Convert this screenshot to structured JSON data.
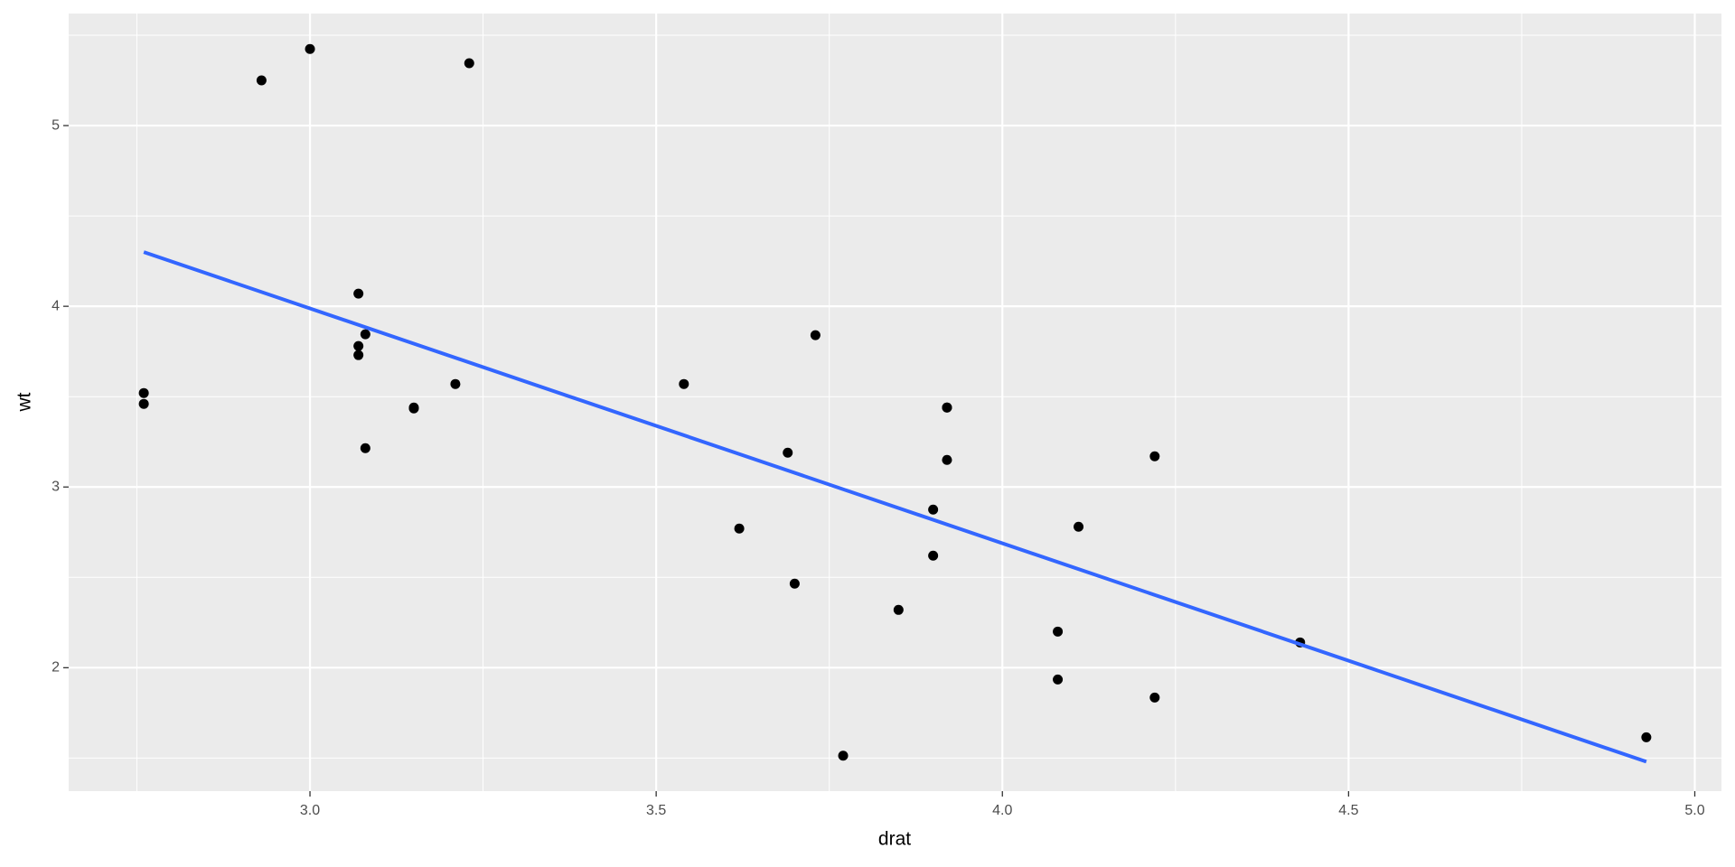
{
  "chart_data": {
    "type": "scatter",
    "x_label": "drat",
    "y_label": "wt",
    "series": [
      {
        "color": "#000000",
        "x": [
          3.9,
          3.9,
          3.85,
          3.08,
          3.15,
          2.76,
          3.21,
          3.69,
          3.92,
          3.92,
          3.92,
          3.07,
          3.07,
          3.07,
          2.93,
          3.0,
          3.23,
          4.08,
          4.93,
          4.22,
          3.7,
          2.76,
          3.15,
          3.73,
          3.08,
          4.08,
          4.43,
          3.77,
          4.22,
          3.62,
          3.54,
          4.11
        ],
        "values": [
          2.62,
          2.875,
          2.32,
          3.215,
          3.44,
          3.46,
          3.57,
          3.19,
          3.15,
          3.44,
          3.44,
          4.07,
          3.73,
          3.78,
          5.25,
          5.424,
          5.345,
          2.2,
          1.615,
          1.835,
          2.465,
          3.52,
          3.435,
          3.84,
          3.845,
          1.935,
          2.14,
          1.513,
          3.17,
          2.77,
          3.57,
          2.78
        ]
      }
    ],
    "fit": {
      "color": "#3366FF",
      "x": [
        2.76,
        4.93
      ],
      "values": [
        4.3,
        1.48
      ]
    },
    "xlim": [
      2.6515,
      5.0385
    ],
    "ylim": [
      1.317,
      5.62
    ],
    "xticks": [
      {
        "value": 3,
        "label": "3.0"
      },
      3.5,
      {
        "value": 4,
        "label": "4.0"
      },
      4.5,
      {
        "value": 5,
        "label": "5.0"
      }
    ],
    "yticks": [
      2,
      3,
      4,
      5
    ],
    "xminor": [
      2.75,
      3.25,
      3.75,
      4.25,
      4.75
    ],
    "yminor": [
      1.5,
      2.5,
      3.5,
      4.5,
      5.5
    ],
    "grid": true
  }
}
